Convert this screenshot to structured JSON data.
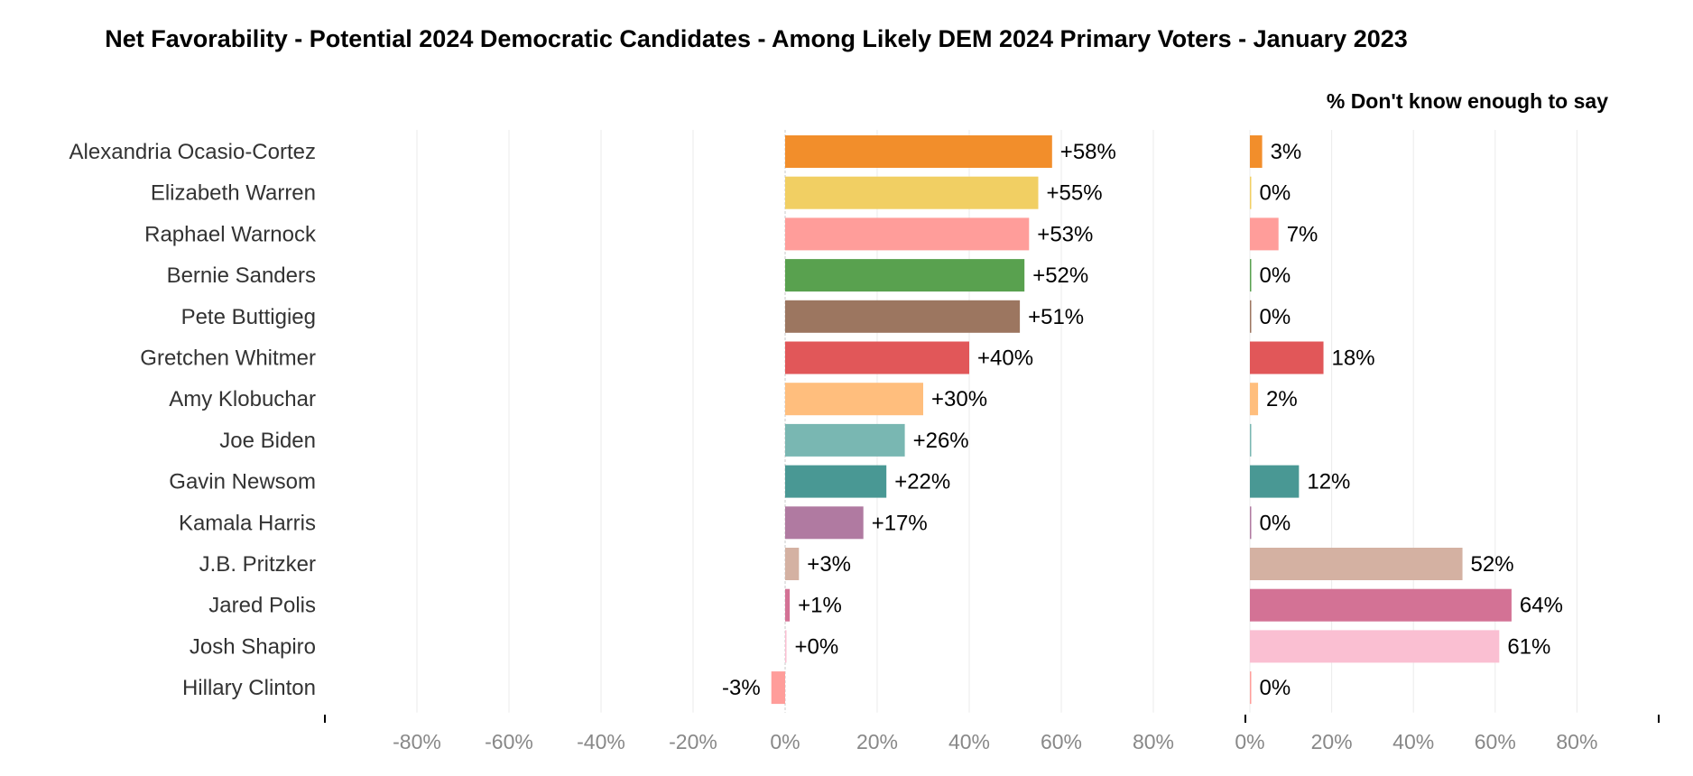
{
  "chart_data": {
    "type": "bar",
    "title": "Net Favorability - Potential 2024 Democratic Candidates - Among Likely DEM 2024 Primary Voters - January 2023",
    "categories": [
      "Alexandria Ocasio-Cortez",
      "Elizabeth Warren",
      "Raphael Warnock",
      "Bernie Sanders",
      "Pete Buttigieg",
      "Gretchen Whitmer",
      "Amy Klobuchar",
      "Joe Biden",
      "Gavin Newsom",
      "Kamala Harris",
      "J.B. Pritzker",
      "Jared Polis",
      "Josh Shapiro",
      "Hillary Clinton"
    ],
    "colors": [
      "#f28e2b",
      "#f1cf63",
      "#ff9d9a",
      "#59a14f",
      "#9c7660",
      "#e15759",
      "#ffbe7d",
      "#79b7b2",
      "#499894",
      "#b07aa1",
      "#d4b1a2",
      "#d37295",
      "#fabfd2",
      "#ff9d9a"
    ],
    "panels": [
      {
        "name": "net-favorability",
        "header": "",
        "values": [
          58,
          55,
          53,
          52,
          51,
          40,
          30,
          26,
          22,
          17,
          3,
          1,
          0,
          -3
        ],
        "labels": [
          "+58%",
          "+55%",
          "+53%",
          "+52%",
          "+51%",
          "+40%",
          "+30%",
          "+26%",
          "+22%",
          "+17%",
          "+3%",
          "+1%",
          "+0%",
          "-3%"
        ],
        "xlim": [
          -100,
          100
        ],
        "ticks": [
          -80,
          -60,
          -40,
          -20,
          0,
          20,
          40,
          60,
          80
        ],
        "tick_labels": [
          "-80%",
          "-60%",
          "-40%",
          "-20%",
          "0%",
          "20%",
          "40%",
          "60%",
          "80%"
        ]
      },
      {
        "name": "dont-know",
        "header": "% Don't know enough to say",
        "values": [
          3,
          0,
          7,
          0,
          0,
          18,
          2,
          0,
          12,
          0,
          52,
          64,
          61,
          0
        ],
        "labels": [
          "3%",
          "0%",
          "7%",
          "0%",
          "0%",
          "18%",
          "2%",
          "",
          "12%",
          "0%",
          "52%",
          "64%",
          "61%",
          "0%"
        ],
        "xlim": [
          0,
          100
        ],
        "ticks": [
          0,
          20,
          40,
          60,
          80
        ],
        "tick_labels": [
          "0%",
          "20%",
          "40%",
          "60%",
          "80%"
        ]
      }
    ],
    "grid": true,
    "legend": "none"
  }
}
